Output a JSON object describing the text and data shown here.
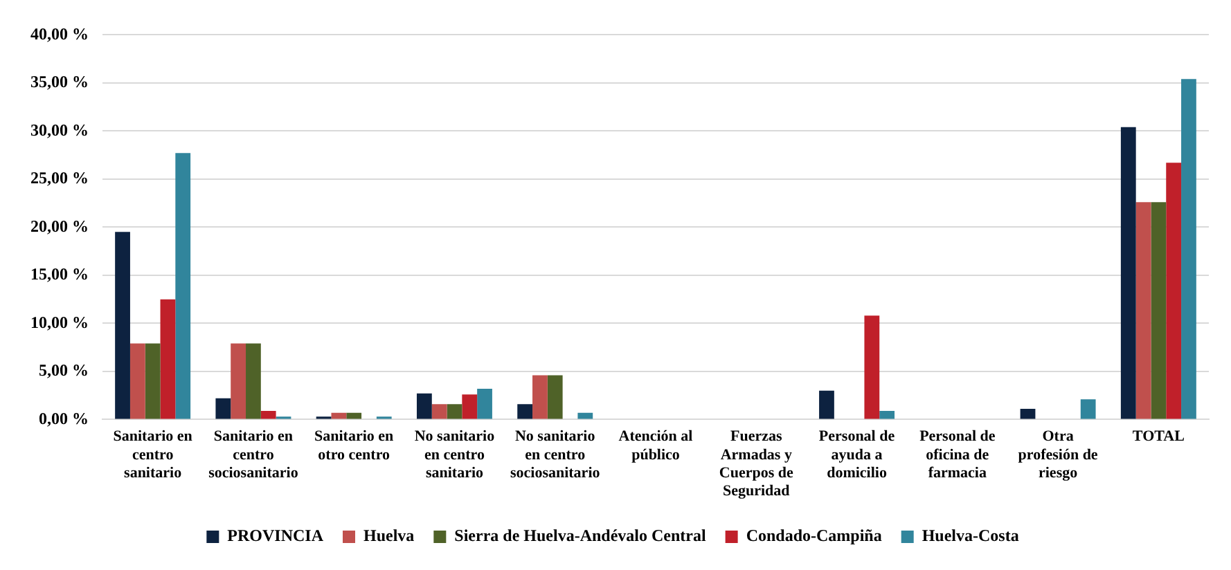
{
  "chart_data": {
    "type": "bar",
    "categories": [
      "Sanitario en centro sanitario",
      "Sanitario en centro sociosanitario",
      "Sanitario en otro centro",
      "No sanitario en centro sanitario",
      "No sanitario en centro sociosanitario",
      "Atención al público",
      "Fuerzas Armadas y Cuerpos de Seguridad",
      "Personal de ayuda a domicilio",
      "Personal de oficina de farmacia",
      "Otra profesión de riesgo",
      "TOTAL"
    ],
    "series": [
      {
        "name": "PROVINCIA",
        "color": "#0d2240",
        "values": [
          19.5,
          2.2,
          0.3,
          2.7,
          1.6,
          0,
          0,
          3.0,
          0,
          1.1,
          30.4
        ]
      },
      {
        "name": "Huelva",
        "color": "#c0504d",
        "values": [
          7.9,
          7.9,
          0.7,
          1.6,
          4.6,
          0,
          0,
          0,
          0,
          0,
          22.6
        ]
      },
      {
        "name": "Sierra de Huelva-Andévalo Central",
        "color": "#4f6228",
        "values": [
          7.9,
          7.9,
          0.7,
          1.6,
          4.6,
          0,
          0,
          0,
          0,
          0,
          22.6
        ]
      },
      {
        "name": "Condado-Campiña",
        "color": "#c0202a",
        "values": [
          12.5,
          0.9,
          0,
          2.6,
          0,
          0,
          0,
          10.8,
          0,
          0,
          26.7
        ]
      },
      {
        "name": "Huelva-Costa",
        "color": "#31859c",
        "values": [
          27.7,
          0.3,
          0.3,
          3.2,
          0.7,
          0,
          0,
          0.9,
          0,
          2.1,
          35.4
        ]
      }
    ],
    "ylim": [
      0,
      40
    ],
    "yticks": [
      {
        "value": 0,
        "label": "0,00 %"
      },
      {
        "value": 5,
        "label": "5,00 %"
      },
      {
        "value": 10,
        "label": "10,00 %"
      },
      {
        "value": 15,
        "label": "15,00 %"
      },
      {
        "value": 20,
        "label": "20,00 %"
      },
      {
        "value": 25,
        "label": "25,00 %"
      },
      {
        "value": 30,
        "label": "30,00 %"
      },
      {
        "value": 35,
        "label": "35,00 %"
      },
      {
        "value": 40,
        "label": "40,00 %"
      }
    ],
    "grid": "y",
    "legend": "bottom"
  }
}
